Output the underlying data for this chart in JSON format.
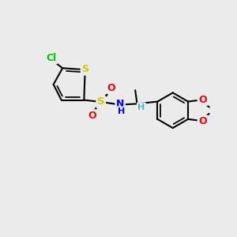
{
  "background_color": "#EBEBEB",
  "bond_color": "#000000",
  "bond_width": 1.5,
  "atom_colors": {
    "Cl": "#00CC00",
    "S": "#CCCC00",
    "O": "#FF0000",
    "N": "#0000FF",
    "H_chiral": "#4DBBBB",
    "C": "#000000"
  },
  "figsize": [
    3.0,
    3.0
  ],
  "dpi": 100,
  "bg": "#EBEBEB"
}
